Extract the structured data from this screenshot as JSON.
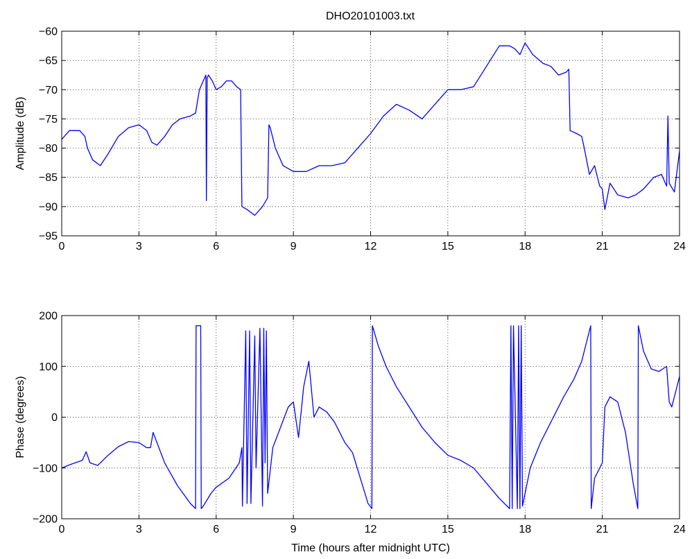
{
  "figure": {
    "title": "DHO20101003.txt",
    "line_color": "#0000ff",
    "axis_color": "#000000",
    "grid_color": "#000000",
    "background": "#ffffff"
  },
  "chart_data": [
    {
      "id": "amplitude",
      "type": "line",
      "title": "DHO20101003.txt",
      "xlabel": "",
      "ylabel": "Amplitude (dB)",
      "xlim": [
        0,
        24
      ],
      "ylim": [
        -95,
        -60
      ],
      "xticks": [
        0,
        3,
        6,
        9,
        12,
        15,
        18,
        21,
        24
      ],
      "yticks": [
        -95,
        -90,
        -85,
        -80,
        -75,
        -70,
        -65,
        -60
      ],
      "grid": true,
      "legend": "none",
      "series": [
        {
          "color": "#0000ff",
          "x": [
            0,
            0.3,
            0.7,
            0.9,
            1.0,
            1.2,
            1.5,
            1.8,
            2.2,
            2.6,
            3.0,
            3.3,
            3.5,
            3.7,
            4.0,
            4.3,
            4.6,
            5.0,
            5.2,
            5.35,
            5.5,
            5.6,
            5.62,
            5.65,
            5.7,
            5.85,
            6.0,
            6.2,
            6.4,
            6.6,
            6.8,
            6.95,
            7.0,
            7.2,
            7.5,
            7.8,
            8.0,
            8.05,
            8.1,
            8.3,
            8.6,
            9.0,
            9.5,
            10.0,
            10.5,
            11.0,
            11.5,
            12.0,
            12.5,
            13.0,
            13.5,
            14.0,
            14.5,
            15.0,
            15.5,
            16.0,
            16.5,
            17.0,
            17.4,
            17.6,
            17.8,
            18.0,
            18.3,
            18.7,
            19.0,
            19.3,
            19.6,
            19.7,
            19.75,
            20.0,
            20.2,
            20.3,
            20.5,
            20.7,
            20.9,
            21.0,
            21.1,
            21.3,
            21.6,
            22.0,
            22.3,
            22.6,
            23.0,
            23.3,
            23.5,
            23.55,
            23.6,
            23.8,
            24.0
          ],
          "y": [
            -78.5,
            -77.0,
            -77.0,
            -78.0,
            -80.0,
            -82.0,
            -83.0,
            -81.0,
            -78.0,
            -76.5,
            -76.0,
            -77.0,
            -79.0,
            -79.5,
            -78.0,
            -76.0,
            -75.0,
            -74.5,
            -74.0,
            -70.0,
            -68.5,
            -67.5,
            -89.0,
            -68.0,
            -67.5,
            -68.5,
            -70.0,
            -69.5,
            -68.5,
            -68.5,
            -69.5,
            -70.0,
            -90.0,
            -90.5,
            -91.5,
            -90.0,
            -88.5,
            -76.0,
            -76.5,
            -80.0,
            -83.0,
            -84.0,
            -84.0,
            -83.0,
            -83.0,
            -82.5,
            -80.0,
            -77.5,
            -74.5,
            -72.5,
            -73.5,
            -75.0,
            -72.5,
            -70.0,
            -70.0,
            -69.5,
            -66.0,
            -62.5,
            -62.5,
            -63.0,
            -64.0,
            -62.0,
            -64.0,
            -65.5,
            -66.0,
            -67.5,
            -67.0,
            -66.5,
            -77.0,
            -77.5,
            -78.0,
            -80.0,
            -84.5,
            -83.0,
            -86.5,
            -87.0,
            -90.5,
            -86.0,
            -88.0,
            -88.5,
            -88.0,
            -87.0,
            -85.0,
            -84.5,
            -86.5,
            -74.5,
            -86.0,
            -87.5,
            -80.5
          ]
        }
      ]
    },
    {
      "id": "phase",
      "type": "line",
      "title": "",
      "xlabel": "Time (hours after midnight UTC)",
      "ylabel": "Phase (degrees)",
      "xlim": [
        0,
        24
      ],
      "ylim": [
        -200,
        200
      ],
      "xticks": [
        0,
        3,
        6,
        9,
        12,
        15,
        18,
        21,
        24
      ],
      "yticks": [
        -200,
        -100,
        0,
        100,
        200
      ],
      "grid": true,
      "legend": "none",
      "series": [
        {
          "color": "#0000ff",
          "x": [
            0,
            0.4,
            0.8,
            0.95,
            1.1,
            1.4,
            1.8,
            2.2,
            2.6,
            3.0,
            3.3,
            3.45,
            3.55,
            3.7,
            4.0,
            4.5,
            5.0,
            5.2,
            5.22,
            5.4,
            5.42,
            5.5,
            5.8,
            6.0,
            6.5,
            6.9,
            7.0,
            7.02,
            7.15,
            7.2,
            7.3,
            7.35,
            7.5,
            7.55,
            7.7,
            7.8,
            7.85,
            7.9,
            7.95,
            8.0,
            8.2,
            8.5,
            8.8,
            9.0,
            9.2,
            9.4,
            9.6,
            9.8,
            10.0,
            10.3,
            10.6,
            11.0,
            11.3,
            11.6,
            11.9,
            12.05,
            12.07,
            12.3,
            12.6,
            13.0,
            13.5,
            14.0,
            14.5,
            15.0,
            15.5,
            16.0,
            16.5,
            17.0,
            17.4,
            17.45,
            17.5,
            17.55,
            17.7,
            17.75,
            17.8,
            17.85,
            17.9,
            18.2,
            18.6,
            19.0,
            19.5,
            19.9,
            20.2,
            20.4,
            20.55,
            20.57,
            20.7,
            21.0,
            21.1,
            21.3,
            21.6,
            21.9,
            22.2,
            22.38,
            22.4,
            22.6,
            22.9,
            23.2,
            23.5,
            23.6,
            23.7,
            23.85,
            24.0
          ],
          "y": [
            -100,
            -92,
            -85,
            -68,
            -90,
            -95,
            -75,
            -58,
            -48,
            -50,
            -60,
            -60,
            -30,
            -50,
            -90,
            -135,
            -170,
            -180,
            180,
            180,
            -180,
            -175,
            -150,
            -138,
            -120,
            -90,
            -60,
            -175,
            170,
            -170,
            170,
            -170,
            160,
            -100,
            175,
            -175,
            175,
            -90,
            170,
            -150,
            -60,
            -20,
            20,
            30,
            -40,
            60,
            110,
            0,
            20,
            10,
            -10,
            -50,
            -70,
            -120,
            -170,
            -180,
            180,
            140,
            100,
            60,
            20,
            -20,
            -50,
            -75,
            -85,
            -100,
            -130,
            -160,
            -180,
            180,
            -180,
            180,
            -180,
            180,
            -180,
            180,
            -175,
            -100,
            -50,
            -10,
            40,
            75,
            110,
            150,
            180,
            -180,
            -120,
            -90,
            20,
            40,
            30,
            -30,
            -130,
            -180,
            180,
            130,
            95,
            90,
            100,
            30,
            20,
            50,
            80
          ]
        }
      ]
    }
  ]
}
